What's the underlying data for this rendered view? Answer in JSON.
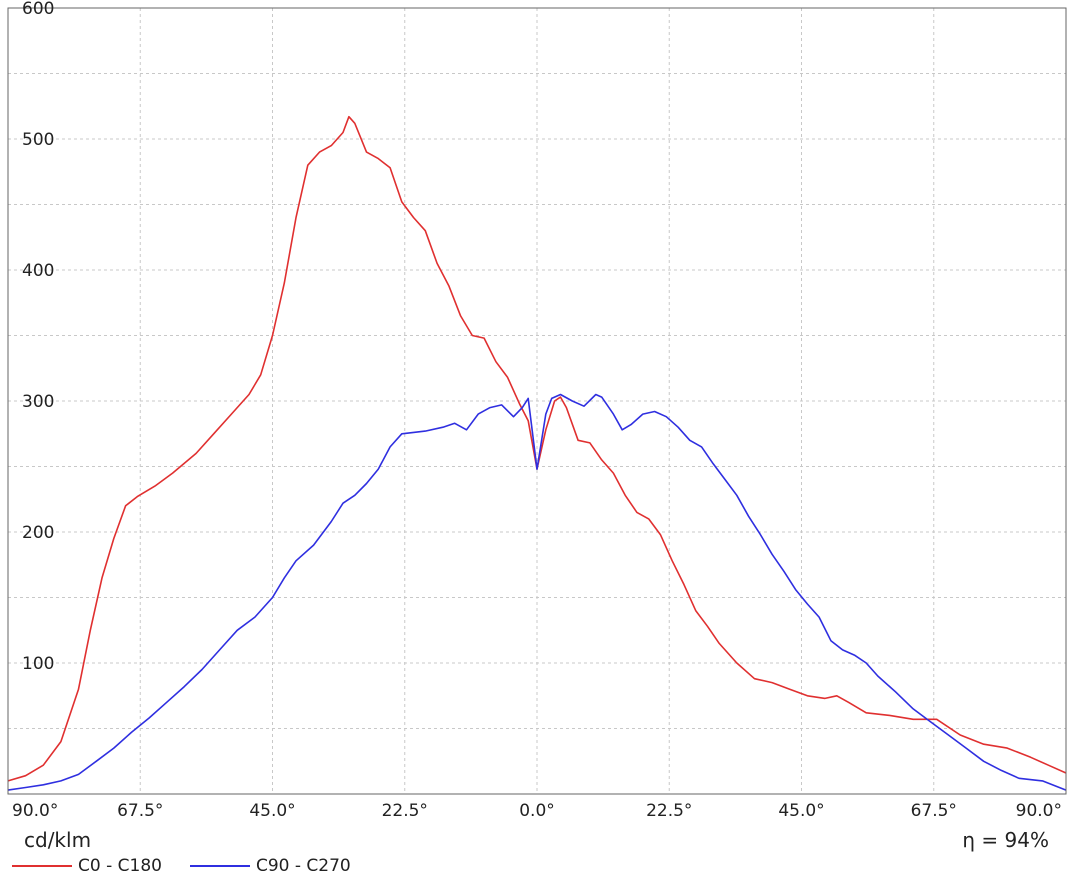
{
  "chart_data": {
    "type": "line",
    "ylabel": "",
    "unit": "cd/klm",
    "efficiency": "η = 94%",
    "ylim": [
      0,
      600
    ],
    "yticks": [
      100,
      200,
      300,
      400,
      500,
      600
    ],
    "xlim": [
      -90,
      90
    ],
    "xticks": [
      {
        "value": -90,
        "label": "90.0°"
      },
      {
        "value": -67.5,
        "label": "67.5°"
      },
      {
        "value": -45,
        "label": "45.0°"
      },
      {
        "value": -22.5,
        "label": "22.5°"
      },
      {
        "value": 0,
        "label": "0.0°"
      },
      {
        "value": 22.5,
        "label": "22.5°"
      },
      {
        "value": 45,
        "label": "45.0°"
      },
      {
        "value": 67.5,
        "label": "67.5°"
      },
      {
        "value": 90,
        "label": "90.0°"
      }
    ],
    "grid": true,
    "series": [
      {
        "name": "C0 - C180",
        "color": "#e03030",
        "points": [
          [
            -90,
            10
          ],
          [
            -87,
            14
          ],
          [
            -84,
            22
          ],
          [
            -81,
            40
          ],
          [
            -78,
            80
          ],
          [
            -76,
            125
          ],
          [
            -74,
            165
          ],
          [
            -72,
            195
          ],
          [
            -70,
            220
          ],
          [
            -68,
            227
          ],
          [
            -65,
            235
          ],
          [
            -62,
            245
          ],
          [
            -58,
            260
          ],
          [
            -55,
            275
          ],
          [
            -52,
            290
          ],
          [
            -49,
            305
          ],
          [
            -47,
            320
          ],
          [
            -45,
            350
          ],
          [
            -43,
            390
          ],
          [
            -41,
            440
          ],
          [
            -39,
            480
          ],
          [
            -37,
            490
          ],
          [
            -35,
            495
          ],
          [
            -33,
            505
          ],
          [
            -32,
            517
          ],
          [
            -31,
            512
          ],
          [
            -29,
            490
          ],
          [
            -27,
            485
          ],
          [
            -25,
            478
          ],
          [
            -23,
            452
          ],
          [
            -21,
            440
          ],
          [
            -19,
            430
          ],
          [
            -17,
            405
          ],
          [
            -15,
            388
          ],
          [
            -13,
            365
          ],
          [
            -11,
            350
          ],
          [
            -9,
            348
          ],
          [
            -7,
            330
          ],
          [
            -5,
            318
          ],
          [
            -3,
            298
          ],
          [
            -1.5,
            285
          ],
          [
            0,
            248
          ],
          [
            1.5,
            278
          ],
          [
            3,
            300
          ],
          [
            4,
            303
          ],
          [
            5,
            295
          ],
          [
            7,
            270
          ],
          [
            9,
            268
          ],
          [
            11,
            255
          ],
          [
            13,
            245
          ],
          [
            15,
            228
          ],
          [
            17,
            215
          ],
          [
            19,
            210
          ],
          [
            21,
            198
          ],
          [
            23,
            178
          ],
          [
            25,
            160
          ],
          [
            27,
            140
          ],
          [
            29,
            128
          ],
          [
            31,
            115
          ],
          [
            34,
            100
          ],
          [
            37,
            88
          ],
          [
            40,
            85
          ],
          [
            43,
            80
          ],
          [
            46,
            75
          ],
          [
            49,
            73
          ],
          [
            51,
            75
          ],
          [
            53,
            70
          ],
          [
            56,
            62
          ],
          [
            60,
            60
          ],
          [
            64,
            57
          ],
          [
            68,
            57
          ],
          [
            72,
            45
          ],
          [
            76,
            38
          ],
          [
            80,
            35
          ],
          [
            84,
            28
          ],
          [
            87,
            22
          ],
          [
            90,
            16
          ]
        ]
      },
      {
        "name": "C90 - C270",
        "color": "#2f2fe0",
        "points": [
          [
            -90,
            3
          ],
          [
            -87,
            5
          ],
          [
            -84,
            7
          ],
          [
            -81,
            10
          ],
          [
            -78,
            15
          ],
          [
            -75,
            25
          ],
          [
            -72,
            35
          ],
          [
            -69,
            47
          ],
          [
            -66,
            58
          ],
          [
            -63,
            70
          ],
          [
            -60,
            82
          ],
          [
            -57,
            95
          ],
          [
            -54,
            110
          ],
          [
            -51,
            125
          ],
          [
            -48,
            135
          ],
          [
            -45,
            150
          ],
          [
            -43,
            165
          ],
          [
            -41,
            178
          ],
          [
            -38,
            190
          ],
          [
            -35,
            208
          ],
          [
            -33,
            222
          ],
          [
            -31,
            228
          ],
          [
            -29,
            237
          ],
          [
            -27,
            248
          ],
          [
            -25,
            265
          ],
          [
            -23,
            275
          ],
          [
            -21,
            276
          ],
          [
            -19,
            277
          ],
          [
            -16,
            280
          ],
          [
            -14,
            283
          ],
          [
            -12,
            278
          ],
          [
            -10,
            290
          ],
          [
            -8,
            295
          ],
          [
            -6,
            297
          ],
          [
            -4,
            288
          ],
          [
            -2.5,
            295
          ],
          [
            -1.5,
            302
          ],
          [
            0,
            248
          ],
          [
            1.5,
            290
          ],
          [
            2.5,
            302
          ],
          [
            4,
            305
          ],
          [
            6,
            300
          ],
          [
            8,
            296
          ],
          [
            10,
            305
          ],
          [
            11,
            303
          ],
          [
            13,
            290
          ],
          [
            14.5,
            278
          ],
          [
            16,
            282
          ],
          [
            18,
            290
          ],
          [
            20,
            292
          ],
          [
            22,
            288
          ],
          [
            24,
            280
          ],
          [
            26,
            270
          ],
          [
            28,
            265
          ],
          [
            30,
            252
          ],
          [
            32,
            240
          ],
          [
            34,
            228
          ],
          [
            36,
            212
          ],
          [
            38,
            198
          ],
          [
            40,
            183
          ],
          [
            42,
            170
          ],
          [
            44,
            156
          ],
          [
            46,
            145
          ],
          [
            48,
            135
          ],
          [
            50,
            117
          ],
          [
            52,
            110
          ],
          [
            54,
            106
          ],
          [
            56,
            100
          ],
          [
            58,
            90
          ],
          [
            61,
            78
          ],
          [
            64,
            65
          ],
          [
            67,
            55
          ],
          [
            70,
            45
          ],
          [
            73,
            35
          ],
          [
            76,
            25
          ],
          [
            79,
            18
          ],
          [
            82,
            12
          ],
          [
            86,
            10
          ],
          [
            90,
            3
          ]
        ]
      }
    ]
  }
}
